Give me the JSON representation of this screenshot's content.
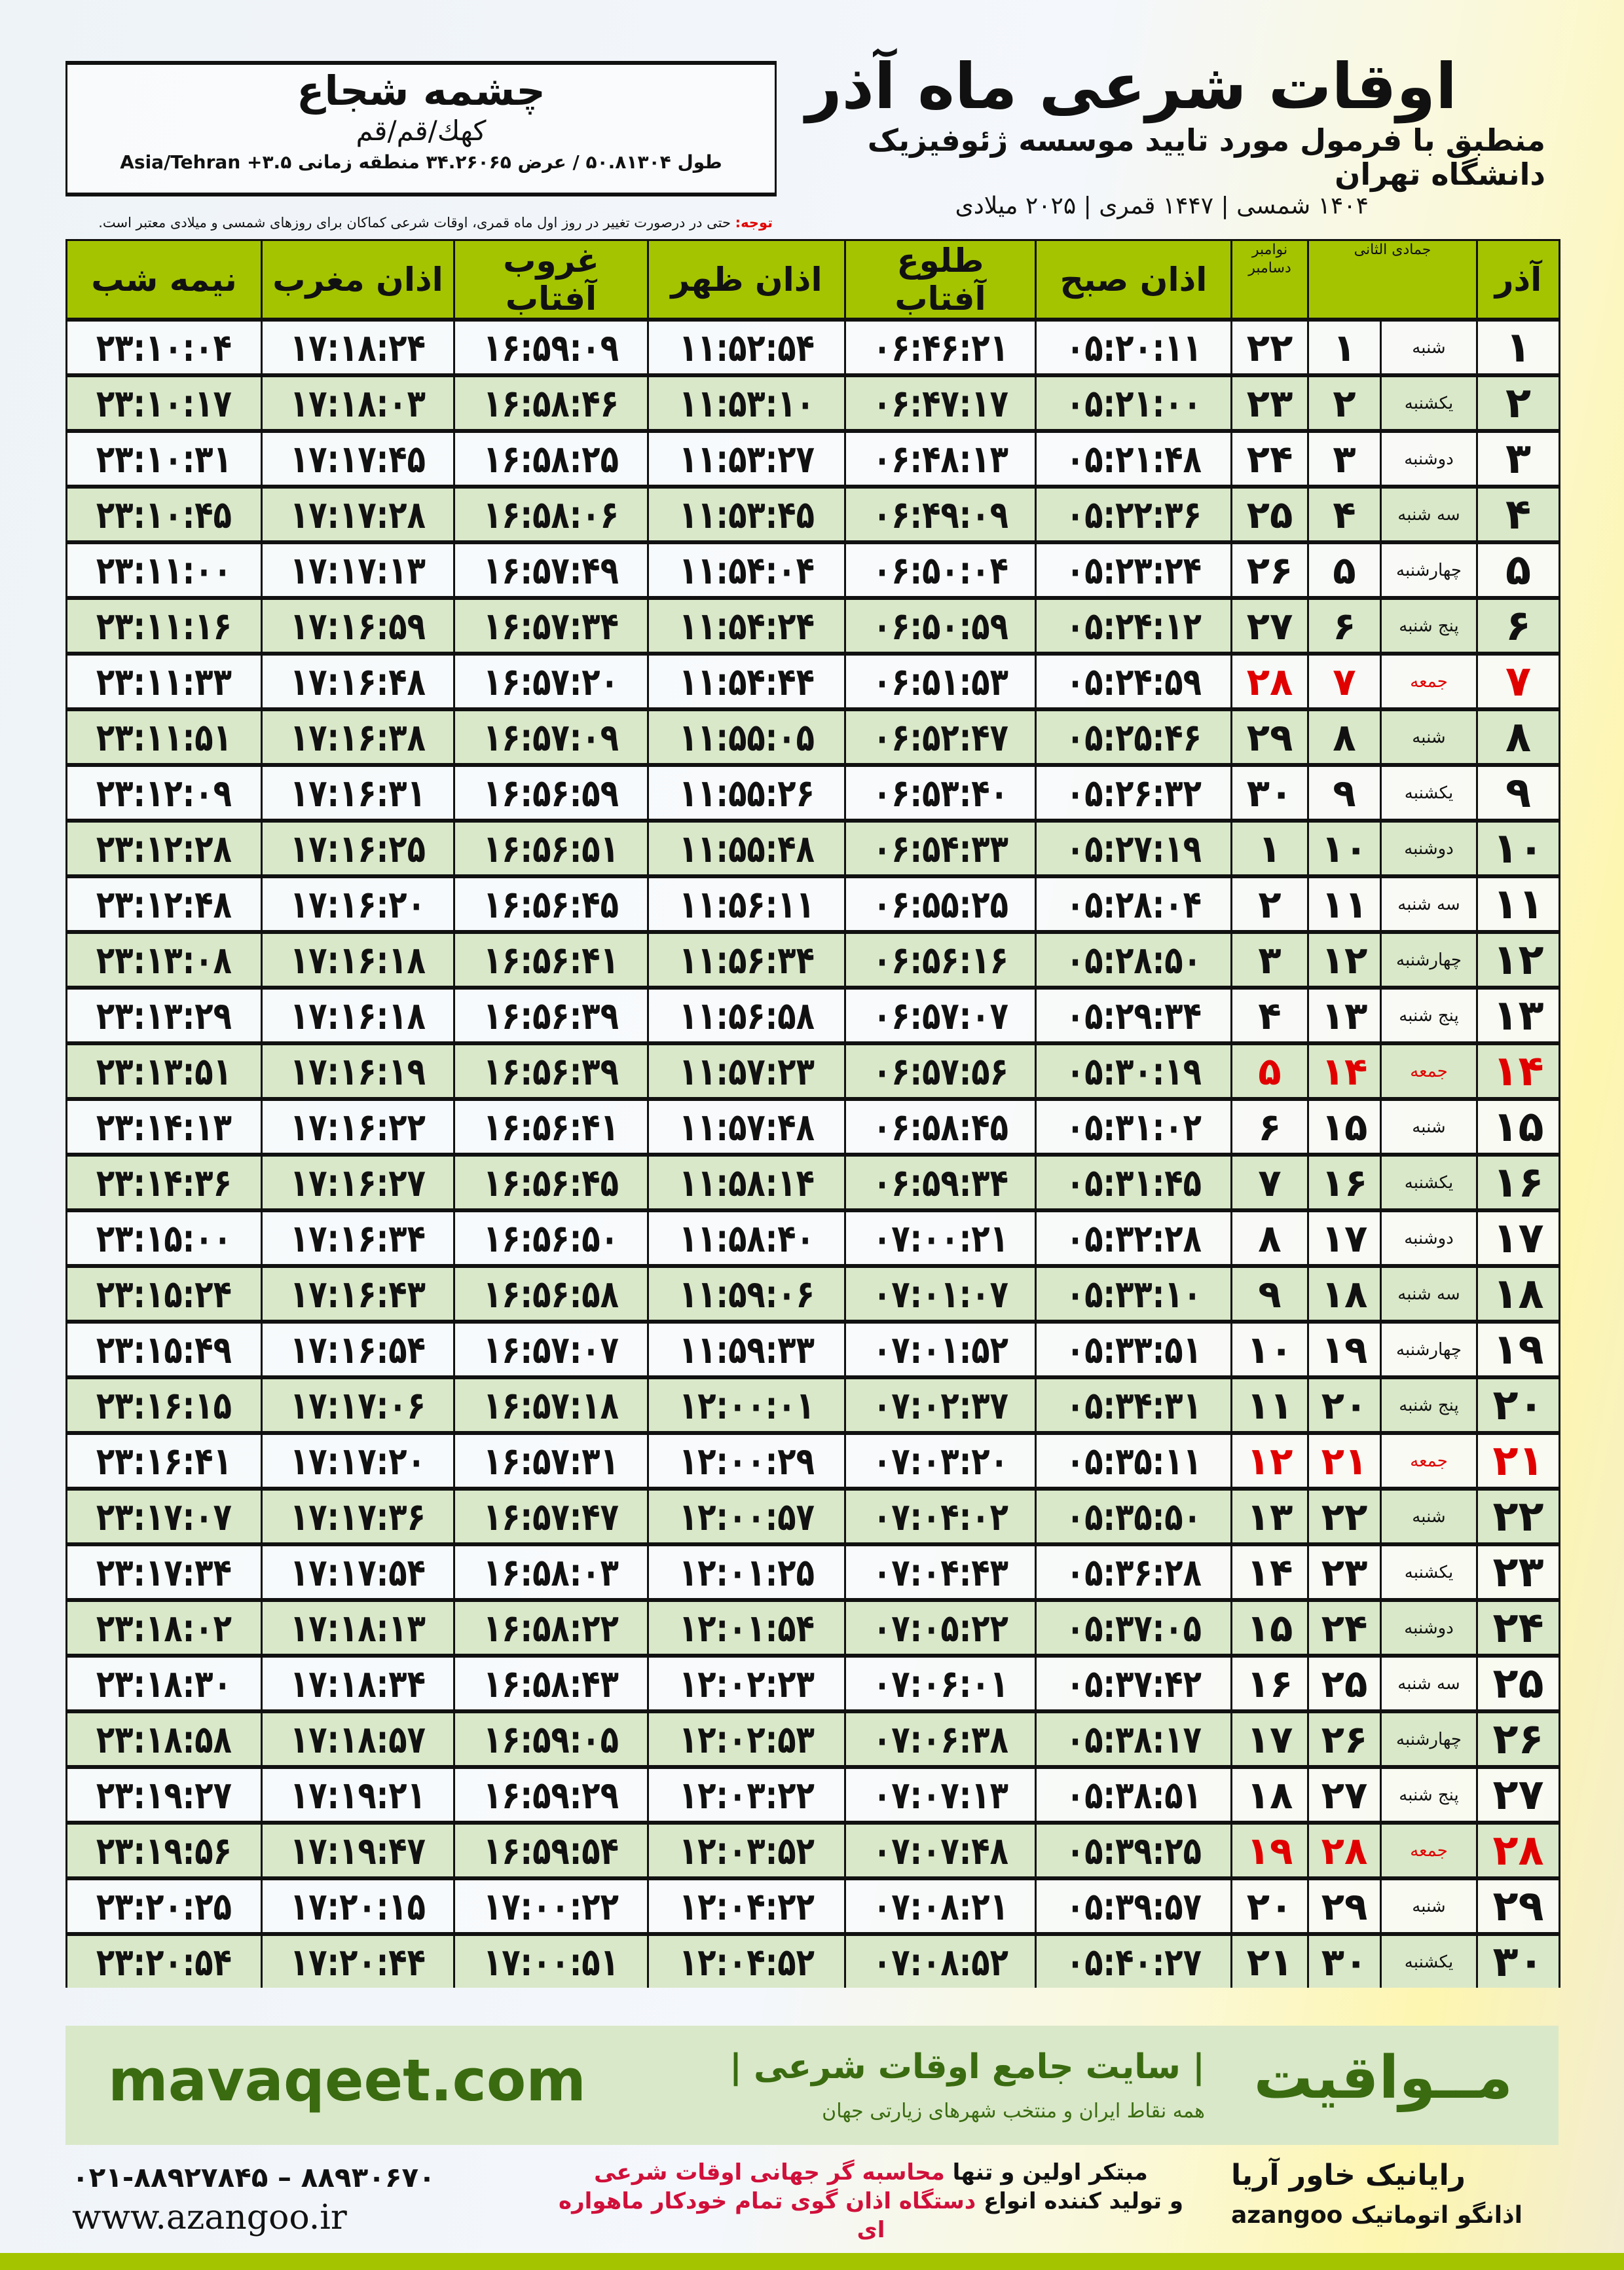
{
  "location": {
    "name": "چشمه شجاع",
    "path": "کهك/قم/قم",
    "coords": "طول ۵۰.۸۱۳۰۴ / عرض ۳۴.۲۶۰۶۵ منطقه زمانی ۳.۵+ Asia/Tehran"
  },
  "header": {
    "title": "اوقات شرعی ماه آذر",
    "subtitle": "منطبق با فرمول مورد تایید موسسه ژئوفیزیک دانشگاه تهران",
    "dateline": "۱۴۰۴ شمسی | ۱۴۴۷ قمری | ۲۰۲۵ میلادی",
    "note_label": "توجه:",
    "note": " حتی در درصورت تغییر در روز اول ماه قمری، اوقات شرعی کماکان برای روزهای شمسی و میلادی معتبر است."
  },
  "columns": {
    "month": "آذر",
    "hijri": "جمادی الثانی",
    "greg": "نوامبر دسامبر",
    "fajr": "اذان صبح",
    "sunrise": "طلوع آفتاب",
    "dhuhr": "اذان ظهر",
    "sunset": "غروب آفتاب",
    "maghrib": "اذان مغرب",
    "midnight": "نیمه شب"
  },
  "colors": {
    "header_green": "#a4c400",
    "row_green": "#d9e8c8",
    "friday_red": "#e00000",
    "brand_green": "#3a6b10"
  },
  "rows": [
    [
      "۱",
      "شنبه",
      "۱",
      "۲۲",
      "۰۵:۲۰:۱۱",
      "۰۶:۴۶:۲۱",
      "۱۱:۵۲:۵۴",
      "۱۶:۵۹:۰۹",
      "۱۷:۱۸:۲۴",
      "۲۳:۱۰:۰۴"
    ],
    [
      "۲",
      "یکشنبه",
      "۲",
      "۲۳",
      "۰۵:۲۱:۰۰",
      "۰۶:۴۷:۱۷",
      "۱۱:۵۳:۱۰",
      "۱۶:۵۸:۴۶",
      "۱۷:۱۸:۰۳",
      "۲۳:۱۰:۱۷"
    ],
    [
      "۳",
      "دوشنبه",
      "۳",
      "۲۴",
      "۰۵:۲۱:۴۸",
      "۰۶:۴۸:۱۳",
      "۱۱:۵۳:۲۷",
      "۱۶:۵۸:۲۵",
      "۱۷:۱۷:۴۵",
      "۲۳:۱۰:۳۱"
    ],
    [
      "۴",
      "سه شنبه",
      "۴",
      "۲۵",
      "۰۵:۲۲:۳۶",
      "۰۶:۴۹:۰۹",
      "۱۱:۵۳:۴۵",
      "۱۶:۵۸:۰۶",
      "۱۷:۱۷:۲۸",
      "۲۳:۱۰:۴۵"
    ],
    [
      "۵",
      "چهارشنبه",
      "۵",
      "۲۶",
      "۰۵:۲۳:۲۴",
      "۰۶:۵۰:۰۴",
      "۱۱:۵۴:۰۴",
      "۱۶:۵۷:۴۹",
      "۱۷:۱۷:۱۳",
      "۲۳:۱۱:۰۰"
    ],
    [
      "۶",
      "پنج شنبه",
      "۶",
      "۲۷",
      "۰۵:۲۴:۱۲",
      "۰۶:۵۰:۵۹",
      "۱۱:۵۴:۲۴",
      "۱۶:۵۷:۳۴",
      "۱۷:۱۶:۵۹",
      "۲۳:۱۱:۱۶"
    ],
    [
      "۷",
      "جمعه",
      "۷",
      "۲۸",
      "۰۵:۲۴:۵۹",
      "۰۶:۵۱:۵۳",
      "۱۱:۵۴:۴۴",
      "۱۶:۵۷:۲۰",
      "۱۷:۱۶:۴۸",
      "۲۳:۱۱:۳۳"
    ],
    [
      "۸",
      "شنبه",
      "۸",
      "۲۹",
      "۰۵:۲۵:۴۶",
      "۰۶:۵۲:۴۷",
      "۱۱:۵۵:۰۵",
      "۱۶:۵۷:۰۹",
      "۱۷:۱۶:۳۸",
      "۲۳:۱۱:۵۱"
    ],
    [
      "۹",
      "یکشنبه",
      "۹",
      "۳۰",
      "۰۵:۲۶:۳۲",
      "۰۶:۵۳:۴۰",
      "۱۱:۵۵:۲۶",
      "۱۶:۵۶:۵۹",
      "۱۷:۱۶:۳۱",
      "۲۳:۱۲:۰۹"
    ],
    [
      "۱۰",
      "دوشنبه",
      "۱۰",
      "۱",
      "۰۵:۲۷:۱۹",
      "۰۶:۵۴:۳۳",
      "۱۱:۵۵:۴۸",
      "۱۶:۵۶:۵۱",
      "۱۷:۱۶:۲۵",
      "۲۳:۱۲:۲۸"
    ],
    [
      "۱۱",
      "سه شنبه",
      "۱۱",
      "۲",
      "۰۵:۲۸:۰۴",
      "۰۶:۵۵:۲۵",
      "۱۱:۵۶:۱۱",
      "۱۶:۵۶:۴۵",
      "۱۷:۱۶:۲۰",
      "۲۳:۱۲:۴۸"
    ],
    [
      "۱۲",
      "چهارشنبه",
      "۱۲",
      "۳",
      "۰۵:۲۸:۵۰",
      "۰۶:۵۶:۱۶",
      "۱۱:۵۶:۳۴",
      "۱۶:۵۶:۴۱",
      "۱۷:۱۶:۱۸",
      "۲۳:۱۳:۰۸"
    ],
    [
      "۱۳",
      "پنج شنبه",
      "۱۳",
      "۴",
      "۰۵:۲۹:۳۴",
      "۰۶:۵۷:۰۷",
      "۱۱:۵۶:۵۸",
      "۱۶:۵۶:۳۹",
      "۱۷:۱۶:۱۸",
      "۲۳:۱۳:۲۹"
    ],
    [
      "۱۴",
      "جمعه",
      "۱۴",
      "۵",
      "۰۵:۳۰:۱۹",
      "۰۶:۵۷:۵۶",
      "۱۱:۵۷:۲۳",
      "۱۶:۵۶:۳۹",
      "۱۷:۱۶:۱۹",
      "۲۳:۱۳:۵۱"
    ],
    [
      "۱۵",
      "شنبه",
      "۱۵",
      "۶",
      "۰۵:۳۱:۰۲",
      "۰۶:۵۸:۴۵",
      "۱۱:۵۷:۴۸",
      "۱۶:۵۶:۴۱",
      "۱۷:۱۶:۲۲",
      "۲۳:۱۴:۱۳"
    ],
    [
      "۱۶",
      "یکشنبه",
      "۱۶",
      "۷",
      "۰۵:۳۱:۴۵",
      "۰۶:۵۹:۳۴",
      "۱۱:۵۸:۱۴",
      "۱۶:۵۶:۴۵",
      "۱۷:۱۶:۲۷",
      "۲۳:۱۴:۳۶"
    ],
    [
      "۱۷",
      "دوشنبه",
      "۱۷",
      "۸",
      "۰۵:۳۲:۲۸",
      "۰۷:۰۰:۲۱",
      "۱۱:۵۸:۴۰",
      "۱۶:۵۶:۵۰",
      "۱۷:۱۶:۳۴",
      "۲۳:۱۵:۰۰"
    ],
    [
      "۱۸",
      "سه شنبه",
      "۱۸",
      "۹",
      "۰۵:۳۳:۱۰",
      "۰۷:۰۱:۰۷",
      "۱۱:۵۹:۰۶",
      "۱۶:۵۶:۵۸",
      "۱۷:۱۶:۴۳",
      "۲۳:۱۵:۲۴"
    ],
    [
      "۱۹",
      "چهارشنبه",
      "۱۹",
      "۱۰",
      "۰۵:۳۳:۵۱",
      "۰۷:۰۱:۵۲",
      "۱۱:۵۹:۳۳",
      "۱۶:۵۷:۰۷",
      "۱۷:۱۶:۵۴",
      "۲۳:۱۵:۴۹"
    ],
    [
      "۲۰",
      "پنج شنبه",
      "۲۰",
      "۱۱",
      "۰۵:۳۴:۳۱",
      "۰۷:۰۲:۳۷",
      "۱۲:۰۰:۰۱",
      "۱۶:۵۷:۱۸",
      "۱۷:۱۷:۰۶",
      "۲۳:۱۶:۱۵"
    ],
    [
      "۲۱",
      "جمعه",
      "۲۱",
      "۱۲",
      "۰۵:۳۵:۱۱",
      "۰۷:۰۳:۲۰",
      "۱۲:۰۰:۲۹",
      "۱۶:۵۷:۳۱",
      "۱۷:۱۷:۲۰",
      "۲۳:۱۶:۴۱"
    ],
    [
      "۲۲",
      "شنبه",
      "۲۲",
      "۱۳",
      "۰۵:۳۵:۵۰",
      "۰۷:۰۴:۰۲",
      "۱۲:۰۰:۵۷",
      "۱۶:۵۷:۴۷",
      "۱۷:۱۷:۳۶",
      "۲۳:۱۷:۰۷"
    ],
    [
      "۲۳",
      "یکشنبه",
      "۲۳",
      "۱۴",
      "۰۵:۳۶:۲۸",
      "۰۷:۰۴:۴۳",
      "۱۲:۰۱:۲۵",
      "۱۶:۵۸:۰۳",
      "۱۷:۱۷:۵۴",
      "۲۳:۱۷:۳۴"
    ],
    [
      "۲۴",
      "دوشنبه",
      "۲۴",
      "۱۵",
      "۰۵:۳۷:۰۵",
      "۰۷:۰۵:۲۲",
      "۱۲:۰۱:۵۴",
      "۱۶:۵۸:۲۲",
      "۱۷:۱۸:۱۳",
      "۲۳:۱۸:۰۲"
    ],
    [
      "۲۵",
      "سه شنبه",
      "۲۵",
      "۱۶",
      "۰۵:۳۷:۴۲",
      "۰۷:۰۶:۰۱",
      "۱۲:۰۲:۲۳",
      "۱۶:۵۸:۴۳",
      "۱۷:۱۸:۳۴",
      "۲۳:۱۸:۳۰"
    ],
    [
      "۲۶",
      "چهارشنبه",
      "۲۶",
      "۱۷",
      "۰۵:۳۸:۱۷",
      "۰۷:۰۶:۳۸",
      "۱۲:۰۲:۵۳",
      "۱۶:۵۹:۰۵",
      "۱۷:۱۸:۵۷",
      "۲۳:۱۸:۵۸"
    ],
    [
      "۲۷",
      "پنج شنبه",
      "۲۷",
      "۱۸",
      "۰۵:۳۸:۵۱",
      "۰۷:۰۷:۱۳",
      "۱۲:۰۳:۲۲",
      "۱۶:۵۹:۲۹",
      "۱۷:۱۹:۲۱",
      "۲۳:۱۹:۲۷"
    ],
    [
      "۲۸",
      "جمعه",
      "۲۸",
      "۱۹",
      "۰۵:۳۹:۲۵",
      "۰۷:۰۷:۴۸",
      "۱۲:۰۳:۵۲",
      "۱۶:۵۹:۵۴",
      "۱۷:۱۹:۴۷",
      "۲۳:۱۹:۵۶"
    ],
    [
      "۲۹",
      "شنبه",
      "۲۹",
      "۲۰",
      "۰۵:۳۹:۵۷",
      "۰۷:۰۸:۲۱",
      "۱۲:۰۴:۲۲",
      "۱۷:۰۰:۲۲",
      "۱۷:۲۰:۱۵",
      "۲۳:۲۰:۲۵"
    ],
    [
      "۳۰",
      "یکشنبه",
      "۳۰",
      "۲۱",
      "۰۵:۴۰:۲۷",
      "۰۷:۰۸:۵۲",
      "۱۲:۰۴:۵۲",
      "۱۷:۰۰:۵۱",
      "۱۷:۲۰:۴۴",
      "۲۳:۲۰:۵۴"
    ]
  ],
  "footer": {
    "site": "mavaqeet.com",
    "brand": "مــواقیت",
    "slogan": "| سایت جامع اوقات شرعی |",
    "slogan2": "همه نقاط ایران و منتخب شهرهای زیارتی جهان",
    "phones": "۰۲۱-۸۸۹۲۷۸۴۵ – ۸۸۹۳۰۶۷۰",
    "www": "www.azangoo.ir",
    "promo1a": "مبتکر اولین و تنها ",
    "promo1b": "محاسبه گر جهانی اوقات شرعی",
    "promo2a": "و تولید کننده انواع ",
    "promo2b": "دستگاه اذان گوی تمام خودکار ماهواره ای",
    "logo_rayanik": "رایانیک خاور آریا",
    "logo_azangoo": "اذانگو اتوماتیک azangoo"
  }
}
